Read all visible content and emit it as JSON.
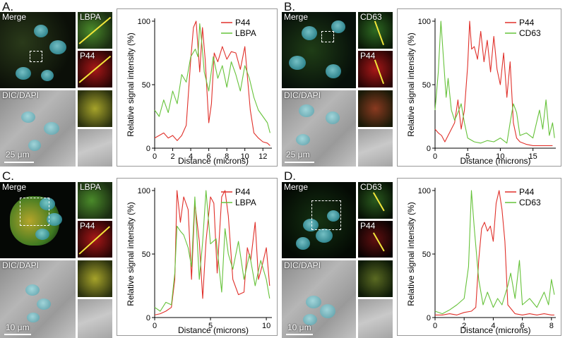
{
  "panels": [
    {
      "letter": "A.",
      "merge_label": "Merge",
      "dic_label": "DIC/DAPI",
      "zoom1_label": "LBPA",
      "zoom2_label": "P44",
      "scale_label": "25 μm",
      "colors": {
        "p44": "#e0302a",
        "marker": "#66c23a"
      }
    },
    {
      "letter": "B.",
      "merge_label": "Merge",
      "dic_label": "DIC/DAPI",
      "zoom1_label": "CD63",
      "zoom2_label": "P44",
      "scale_label": "25 μm"
    },
    {
      "letter": "C.",
      "merge_label": "Merge",
      "dic_label": "DIC/DAPI",
      "zoom1_label": "LBPA",
      "zoom2_label": "P44",
      "scale_label": "10 μm"
    },
    {
      "letter": "D.",
      "merge_label": "Merge",
      "dic_label": "DIC/DAPI",
      "zoom1_label": "CD63",
      "zoom2_label": "P44",
      "scale_label": "10 μm"
    }
  ],
  "chart_data": [
    {
      "type": "line",
      "xlabel": "Distance (microns)",
      "ylabel": "Relative signal intensity (%)",
      "xlim": [
        0,
        13
      ],
      "ylim": [
        0,
        100
      ],
      "xticks": [
        0,
        2,
        4,
        6,
        8,
        10,
        12
      ],
      "yticks": [
        0,
        50,
        100
      ],
      "legend": "top-right",
      "series": [
        {
          "name": "P44",
          "color": "#e0302a",
          "x": [
            0,
            0.5,
            1,
            1.5,
            2,
            2.5,
            3,
            3.5,
            4,
            4.3,
            4.6,
            5,
            5.3,
            5.6,
            6,
            6.3,
            6.6,
            7,
            7.5,
            8,
            8.5,
            9,
            9.5,
            10,
            10.3,
            10.6,
            11,
            11.5,
            12,
            12.5,
            12.8
          ],
          "y": [
            8,
            10,
            12,
            8,
            10,
            6,
            10,
            18,
            70,
            95,
            100,
            60,
            95,
            70,
            20,
            35,
            75,
            68,
            80,
            70,
            76,
            75,
            62,
            80,
            55,
            30,
            12,
            8,
            5,
            4,
            2
          ]
        },
        {
          "name": "LBPA",
          "color": "#66c23a",
          "x": [
            0,
            0.5,
            1,
            1.5,
            2,
            2.5,
            3,
            3.5,
            4,
            4.5,
            4.8,
            5,
            5.2,
            5.5,
            6,
            6.5,
            7,
            7.5,
            8,
            8.5,
            9,
            9.5,
            10,
            10.5,
            11,
            11.5,
            12,
            12.5,
            12.8
          ],
          "y": [
            30,
            25,
            38,
            28,
            45,
            35,
            58,
            52,
            72,
            78,
            72,
            98,
            85,
            60,
            45,
            72,
            55,
            65,
            48,
            68,
            58,
            45,
            65,
            55,
            40,
            30,
            25,
            20,
            12
          ]
        }
      ]
    },
    {
      "type": "line",
      "xlabel": "Distance (microns)",
      "ylabel": "Relative signal intensity (%)",
      "xlim": [
        0,
        18.5
      ],
      "ylim": [
        0,
        100
      ],
      "xticks": [
        0,
        5,
        10,
        15
      ],
      "yticks": [
        0,
        50,
        100
      ],
      "legend": "top-right",
      "series": [
        {
          "name": "P44",
          "color": "#e0302a",
          "x": [
            0,
            0.5,
            1,
            1.5,
            2,
            2.5,
            3,
            3.5,
            4,
            4.5,
            5,
            5.3,
            5.6,
            6,
            6.5,
            7,
            7.5,
            8,
            8.5,
            9,
            9.5,
            10,
            10.5,
            11,
            11.5,
            12,
            12.5,
            13,
            14,
            15,
            16,
            17,
            18
          ],
          "y": [
            15,
            12,
            10,
            5,
            10,
            15,
            20,
            38,
            15,
            30,
            65,
            100,
            78,
            80,
            70,
            92,
            68,
            85,
            60,
            88,
            62,
            50,
            75,
            40,
            68,
            20,
            8,
            5,
            3,
            2,
            2,
            2,
            2
          ]
        },
        {
          "name": "CD63",
          "color": "#66c23a",
          "x": [
            0,
            0.5,
            0.9,
            1.3,
            1.7,
            2,
            2.5,
            3,
            3.5,
            4,
            4.5,
            5,
            6,
            7,
            8,
            9,
            10,
            11,
            11.5,
            12,
            12.5,
            13,
            14,
            15,
            16,
            16.5,
            17,
            17.5,
            18,
            18.3
          ],
          "y": [
            30,
            60,
            100,
            70,
            40,
            55,
            30,
            22,
            28,
            35,
            20,
            8,
            5,
            4,
            6,
            5,
            8,
            4,
            20,
            35,
            28,
            10,
            12,
            8,
            30,
            15,
            38,
            10,
            20,
            8
          ]
        }
      ]
    },
    {
      "type": "line",
      "xlabel": "Distance (microns)",
      "ylabel": "Relative signal intensity (%)",
      "xlim": [
        0,
        10.5
      ],
      "ylim": [
        0,
        100
      ],
      "xticks": [
        0,
        5,
        10
      ],
      "yticks": [
        0,
        50,
        100
      ],
      "legend": "top-right",
      "series": [
        {
          "name": "P44",
          "color": "#e0302a",
          "x": [
            0,
            0.5,
            1,
            1.5,
            1.8,
            2,
            2.3,
            2.6,
            3,
            3.3,
            3.6,
            4,
            4.3,
            4.6,
            5,
            5.3,
            5.6,
            6,
            6.3,
            6.6,
            7,
            7.5,
            8,
            8.3,
            8.6,
            9,
            9.3,
            9.6,
            10,
            10.3
          ],
          "y": [
            2,
            3,
            5,
            8,
            30,
            100,
            75,
            95,
            85,
            30,
            90,
            60,
            15,
            60,
            95,
            90,
            35,
            95,
            100,
            80,
            30,
            18,
            20,
            55,
            45,
            75,
            30,
            40,
            55,
            25
          ]
        },
        {
          "name": "LBPA",
          "color": "#66c23a",
          "x": [
            0,
            0.5,
            1,
            1.5,
            1.8,
            2,
            2.3,
            2.6,
            3,
            3.3,
            3.6,
            4,
            4.3,
            4.6,
            5,
            5.5,
            6,
            6.3,
            6.6,
            7,
            7.5,
            8,
            8.5,
            9,
            9.5,
            10,
            10.3
          ],
          "y": [
            8,
            5,
            12,
            10,
            35,
            72,
            68,
            65,
            55,
            40,
            95,
            30,
            60,
            100,
            58,
            62,
            20,
            70,
            50,
            38,
            60,
            30,
            50,
            25,
            45,
            30,
            15
          ]
        }
      ]
    },
    {
      "type": "line",
      "xlabel": "Distance (microns)",
      "ylabel": "Relative signal intensity (%)",
      "xlim": [
        0,
        8.3
      ],
      "ylim": [
        0,
        100
      ],
      "xticks": [
        0,
        2,
        4,
        6,
        8
      ],
      "yticks": [
        0,
        50,
        100
      ],
      "legend": "top-right",
      "series": [
        {
          "name": "P44",
          "color": "#e0302a",
          "x": [
            0,
            0.5,
            1,
            1.5,
            2,
            2.5,
            2.8,
            3,
            3.2,
            3.4,
            3.6,
            3.8,
            4,
            4.2,
            4.4,
            4.6,
            4.8,
            5,
            5.5,
            6,
            6.5,
            7,
            7.5,
            8,
            8.2
          ],
          "y": [
            2,
            2,
            3,
            2,
            4,
            5,
            8,
            45,
            70,
            75,
            68,
            72,
            60,
            90,
            100,
            85,
            60,
            10,
            3,
            2,
            3,
            2,
            3,
            2,
            2
          ]
        },
        {
          "name": "CD63",
          "color": "#66c23a",
          "x": [
            0,
            0.5,
            1,
            1.5,
            2,
            2.3,
            2.5,
            2.7,
            3,
            3.3,
            3.6,
            4,
            4.3,
            4.6,
            5,
            5.2,
            5.5,
            5.8,
            6,
            6.5,
            7,
            7.5,
            7.8,
            8,
            8.2
          ],
          "y": [
            5,
            3,
            6,
            10,
            15,
            40,
            100,
            70,
            30,
            10,
            20,
            8,
            15,
            10,
            25,
            35,
            15,
            45,
            10,
            15,
            8,
            20,
            10,
            30,
            18
          ]
        }
      ]
    }
  ]
}
